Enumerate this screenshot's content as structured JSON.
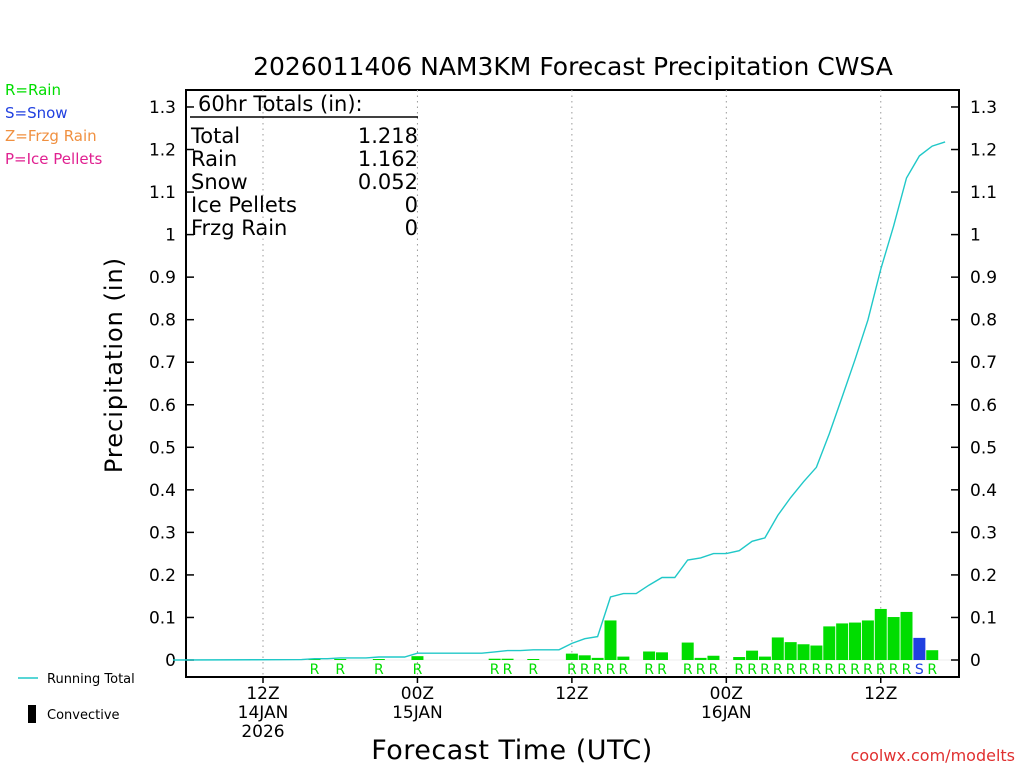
{
  "colors": {
    "rain": "#00dd00",
    "snow": "#2040e0",
    "freezing_rain": "#f09040",
    "ice_pellets": "#e02090",
    "running_total": "#20c8c8",
    "convective": "#000000",
    "credit": "#e03030",
    "grid": "#999999"
  },
  "legend": {
    "rain": "R=Rain",
    "snow": "S=Snow",
    "freezing_rain": "Z=Frzg Rain",
    "ice_pellets": "P=Ice Pellets"
  },
  "key": {
    "running_total": "Running Total",
    "convective": "Convective"
  },
  "totals": {
    "header": "60hr Totals (in):",
    "rows": [
      {
        "label": "Total",
        "value": "1.218"
      },
      {
        "label": "Rain",
        "value": "1.162"
      },
      {
        "label": "Snow",
        "value": "0.052"
      },
      {
        "label": "Ice Pellets",
        "value": "0"
      },
      {
        "label": "Frzg Rain",
        "value": "0"
      }
    ]
  },
  "credit": "coolwx.com/modelts",
  "chart_data": {
    "type": "bar",
    "title": "2026011406 NAM3KM Forecast Precipitation CWSA",
    "xlabel": "Forecast Time (UTC)",
    "ylabel": "Precipitation (in)",
    "ylim": [
      0,
      1.3
    ],
    "yticks": [
      0,
      0.1,
      0.2,
      0.3,
      0.4,
      0.5,
      0.6,
      0.7,
      0.8,
      0.9,
      1,
      1.1,
      1.2,
      1.3
    ],
    "ytick_labels": [
      "0",
      "0.1",
      "0.2",
      "0.3",
      "0.4",
      "0.5",
      "0.6",
      "0.7",
      "0.8",
      "0.9",
      "1",
      "1.1",
      "1.2",
      "1.3"
    ],
    "x_hours_range": [
      5,
      65
    ],
    "x_ticks": [
      {
        "hour": 12,
        "lines": [
          "12Z",
          "14JAN",
          "2026"
        ]
      },
      {
        "hour": 24,
        "lines": [
          "00Z",
          "15JAN"
        ]
      },
      {
        "hour": 36,
        "lines": [
          "12Z"
        ]
      },
      {
        "hour": 48,
        "lines": [
          "00Z",
          "16JAN"
        ]
      },
      {
        "hour": 60,
        "lines": [
          "12Z"
        ]
      }
    ],
    "hourly_precip": [
      {
        "hour": 16,
        "value": 0.002,
        "type": "R"
      },
      {
        "hour": 18,
        "value": 0.002,
        "type": "R"
      },
      {
        "hour": 21,
        "value": 0.002,
        "type": "R"
      },
      {
        "hour": 24,
        "value": 0.009,
        "type": "R"
      },
      {
        "hour": 30,
        "value": 0.003,
        "type": "R"
      },
      {
        "hour": 31,
        "value": 0.003,
        "type": "R"
      },
      {
        "hour": 33,
        "value": 0.002,
        "type": "R"
      },
      {
        "hour": 36,
        "value": 0.015,
        "type": "R"
      },
      {
        "hour": 37,
        "value": 0.011,
        "type": "R"
      },
      {
        "hour": 38,
        "value": 0.005,
        "type": "R"
      },
      {
        "hour": 39,
        "value": 0.093,
        "type": "R"
      },
      {
        "hour": 40,
        "value": 0.008,
        "type": "R"
      },
      {
        "hour": 42,
        "value": 0.02,
        "type": "R"
      },
      {
        "hour": 43,
        "value": 0.018,
        "type": "R"
      },
      {
        "hour": 45,
        "value": 0.041,
        "type": "R"
      },
      {
        "hour": 46,
        "value": 0.005,
        "type": "R"
      },
      {
        "hour": 47,
        "value": 0.01,
        "type": "R"
      },
      {
        "hour": 49,
        "value": 0.007,
        "type": "R"
      },
      {
        "hour": 50,
        "value": 0.022,
        "type": "R"
      },
      {
        "hour": 51,
        "value": 0.008,
        "type": "R"
      },
      {
        "hour": 52,
        "value": 0.053,
        "type": "R"
      },
      {
        "hour": 53,
        "value": 0.042,
        "type": "R"
      },
      {
        "hour": 54,
        "value": 0.037,
        "type": "R"
      },
      {
        "hour": 55,
        "value": 0.034,
        "type": "R"
      },
      {
        "hour": 56,
        "value": 0.079,
        "type": "R"
      },
      {
        "hour": 57,
        "value": 0.086,
        "type": "R"
      },
      {
        "hour": 58,
        "value": 0.088,
        "type": "R"
      },
      {
        "hour": 59,
        "value": 0.093,
        "type": "R"
      },
      {
        "hour": 60,
        "value": 0.12,
        "type": "R"
      },
      {
        "hour": 61,
        "value": 0.101,
        "type": "R"
      },
      {
        "hour": 62,
        "value": 0.113,
        "type": "R"
      },
      {
        "hour": 63,
        "value": 0.052,
        "type": "S"
      },
      {
        "hour": 64,
        "value": 0.023,
        "type": "R"
      }
    ],
    "running_total": [
      {
        "hour": 5,
        "value": 0.0
      },
      {
        "hour": 15,
        "value": 0.001
      },
      {
        "hour": 16,
        "value": 0.003
      },
      {
        "hour": 17,
        "value": 0.003
      },
      {
        "hour": 18,
        "value": 0.005
      },
      {
        "hour": 20,
        "value": 0.005
      },
      {
        "hour": 21,
        "value": 0.007
      },
      {
        "hour": 23,
        "value": 0.007
      },
      {
        "hour": 24,
        "value": 0.016
      },
      {
        "hour": 29,
        "value": 0.016
      },
      {
        "hour": 30,
        "value": 0.019
      },
      {
        "hour": 31,
        "value": 0.022
      },
      {
        "hour": 32,
        "value": 0.022
      },
      {
        "hour": 33,
        "value": 0.024
      },
      {
        "hour": 35,
        "value": 0.024
      },
      {
        "hour": 36,
        "value": 0.039
      },
      {
        "hour": 37,
        "value": 0.05
      },
      {
        "hour": 38,
        "value": 0.055
      },
      {
        "hour": 39,
        "value": 0.148
      },
      {
        "hour": 40,
        "value": 0.156
      },
      {
        "hour": 41,
        "value": 0.156
      },
      {
        "hour": 42,
        "value": 0.176
      },
      {
        "hour": 43,
        "value": 0.194
      },
      {
        "hour": 44,
        "value": 0.194
      },
      {
        "hour": 45,
        "value": 0.235
      },
      {
        "hour": 46,
        "value": 0.24
      },
      {
        "hour": 47,
        "value": 0.25
      },
      {
        "hour": 48,
        "value": 0.25
      },
      {
        "hour": 49,
        "value": 0.257
      },
      {
        "hour": 50,
        "value": 0.279
      },
      {
        "hour": 51,
        "value": 0.287
      },
      {
        "hour": 52,
        "value": 0.34
      },
      {
        "hour": 53,
        "value": 0.382
      },
      {
        "hour": 54,
        "value": 0.419
      },
      {
        "hour": 55,
        "value": 0.453
      },
      {
        "hour": 56,
        "value": 0.532
      },
      {
        "hour": 57,
        "value": 0.618
      },
      {
        "hour": 58,
        "value": 0.706
      },
      {
        "hour": 59,
        "value": 0.799
      },
      {
        "hour": 60,
        "value": 0.919
      },
      {
        "hour": 61,
        "value": 1.02
      },
      {
        "hour": 62,
        "value": 1.133
      },
      {
        "hour": 63,
        "value": 1.185
      },
      {
        "hour": 64,
        "value": 1.208
      },
      {
        "hour": 65,
        "value": 1.218
      }
    ]
  }
}
